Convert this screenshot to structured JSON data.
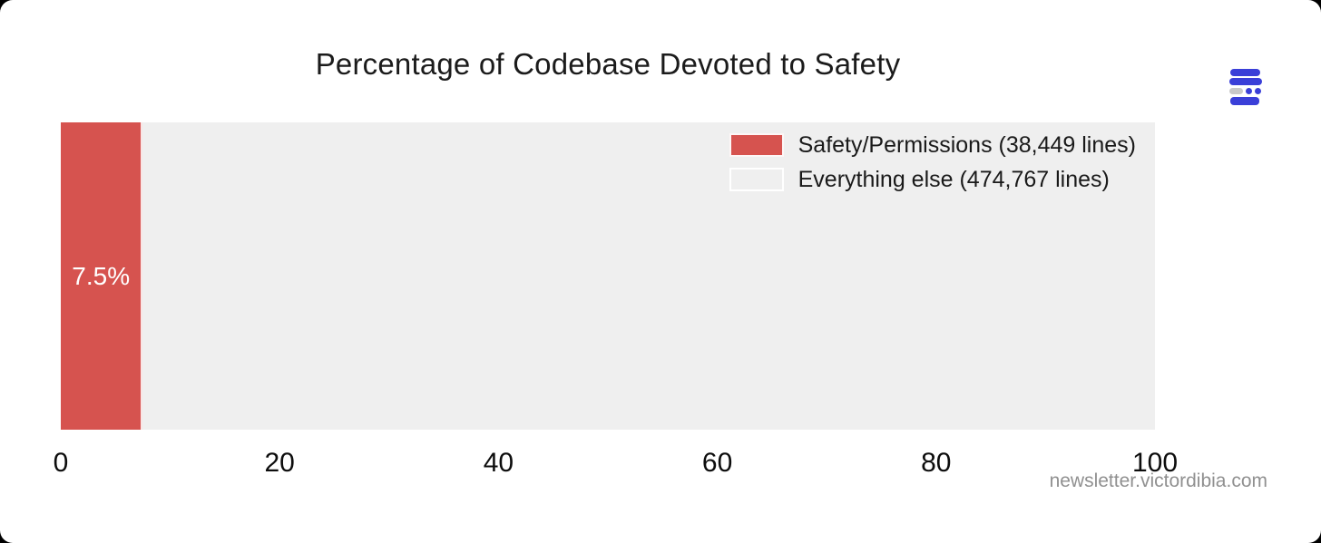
{
  "page": {
    "watermark": "newsletter.victordibia.com"
  },
  "logo": {
    "name": "stacked-bars-logo",
    "blue": "#3a3fd8",
    "gray": "#c9c9c9"
  },
  "colors": {
    "safety_red": "#d6534f",
    "everything_gray": "#efefef",
    "title_text": "#1b1b1b",
    "watermark_gray": "#909090"
  },
  "chart_data": {
    "type": "bar",
    "orientation": "horizontal",
    "title": "Percentage of Codebase Devoted to Safety",
    "series": [
      {
        "name": "Safety/Permissions (38,449 lines)",
        "value_percent": 7.5,
        "lines": 38449,
        "color": "#d6534f"
      },
      {
        "name": "Everything else (474,767 lines)",
        "value_percent": 92.5,
        "lines": 474767,
        "color": "#efefef"
      }
    ],
    "bar_label": "7.5%",
    "xticks": [
      0,
      20,
      40,
      60,
      80,
      100
    ],
    "xlim": [
      0,
      100
    ],
    "grid": false,
    "legend_position": "top-right-inside"
  }
}
